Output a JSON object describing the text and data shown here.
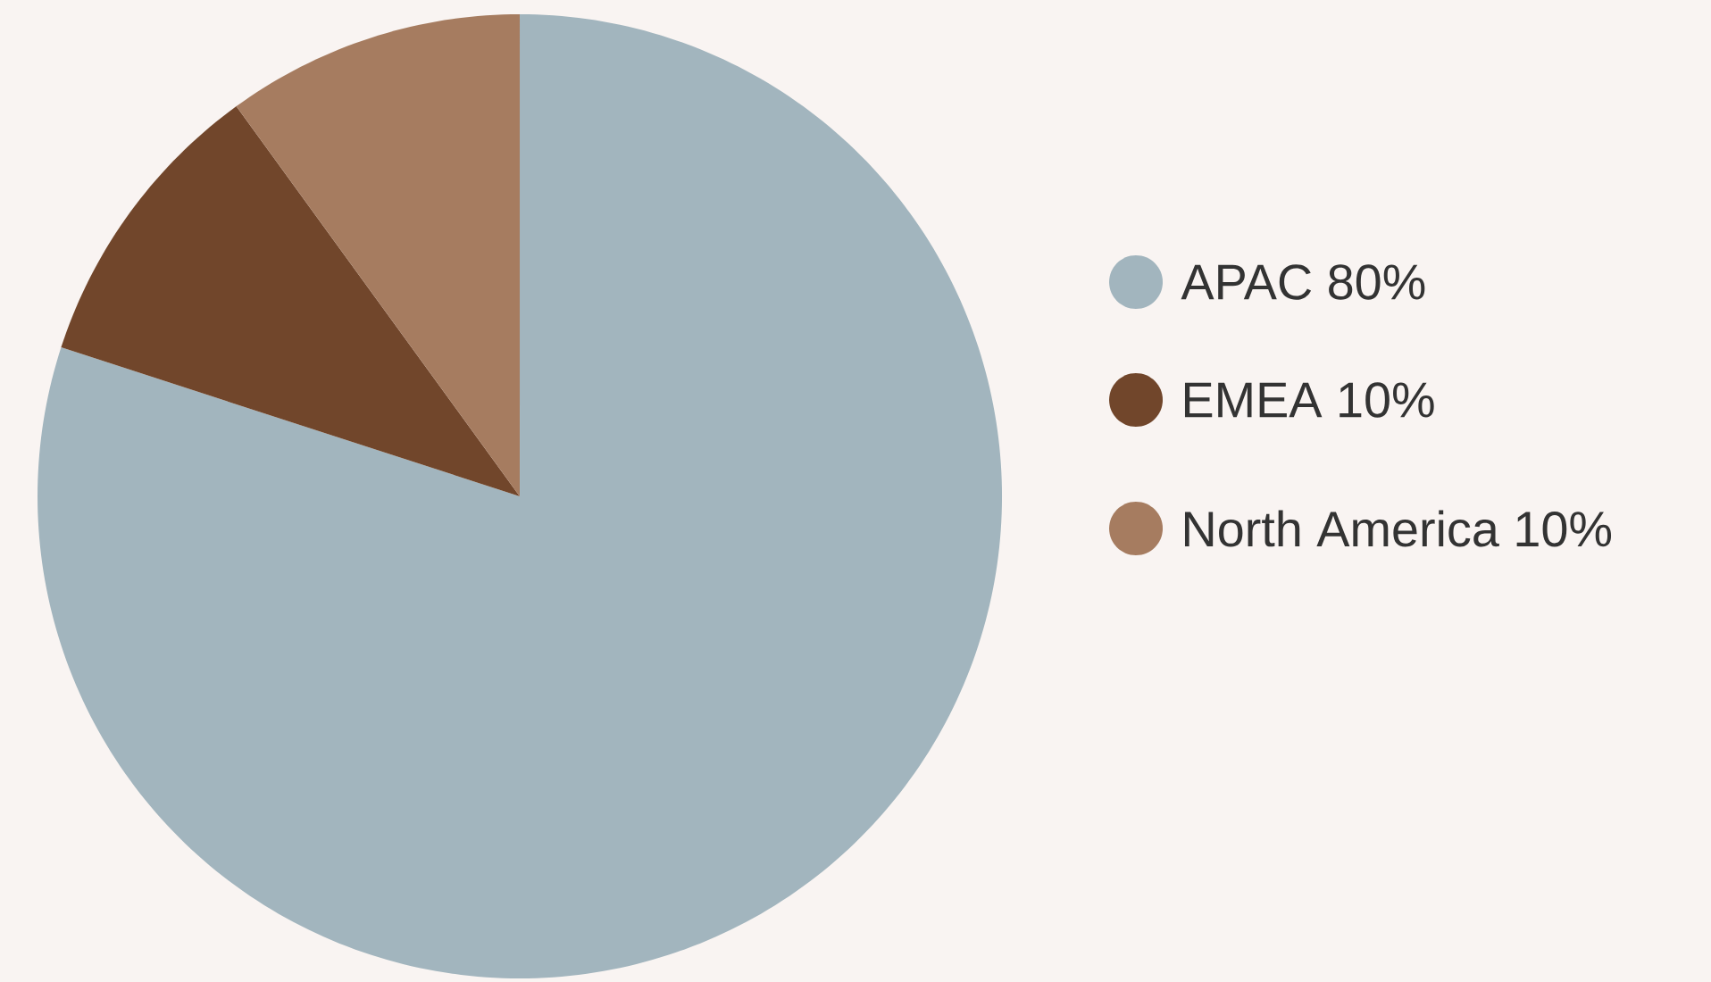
{
  "chart_data": {
    "type": "pie",
    "categories": [
      "APAC 80%",
      "EMEA 10%",
      "North America 10%"
    ],
    "values": [
      80,
      10,
      10
    ],
    "colors": [
      "#a2b5be",
      "#71462b",
      "#a67c60"
    ],
    "legend": "right"
  }
}
